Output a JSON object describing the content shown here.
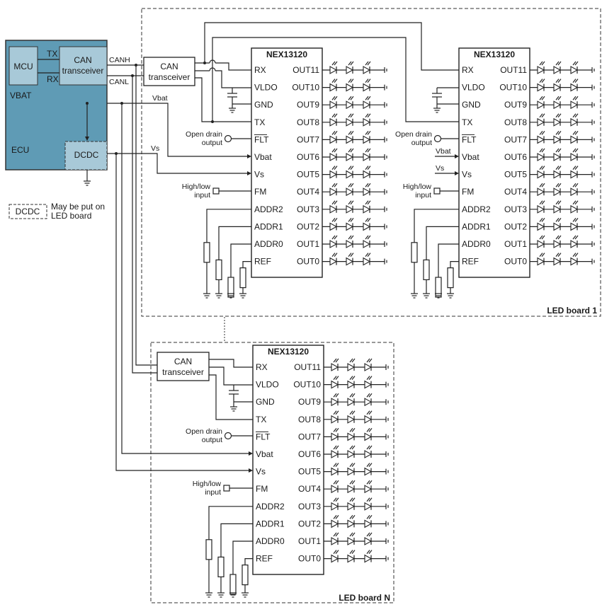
{
  "ecu": {
    "label": "ECU",
    "vbat_label": "VBAT",
    "mcu": "MCU",
    "can_transceiver": [
      "CAN",
      "transceiver"
    ],
    "tx": "TX",
    "rx": "RX",
    "dcdc": "DCDC",
    "canh": "CANH",
    "canl": "CANL"
  },
  "wires": {
    "vbat": "Vbat",
    "vs": "Vs"
  },
  "legend": {
    "dcdc": "DCDC",
    "note": [
      "May be put on",
      "LED board"
    ]
  },
  "transceiver": [
    "CAN",
    "transceiver"
  ],
  "chip": {
    "name": "NEX13120",
    "left_pins": [
      "RX",
      "VLDO",
      "GND",
      "TX",
      "FLT",
      "Vbat",
      "Vs",
      "FM",
      "ADDR2",
      "ADDR1",
      "ADDR0",
      "REF"
    ],
    "right_pins": [
      "OUT11",
      "OUT10",
      "OUT9",
      "OUT8",
      "OUT7",
      "OUT6",
      "OUT5",
      "OUT4",
      "OUT3",
      "OUT2",
      "OUT1",
      "OUT0"
    ]
  },
  "open_drain": [
    "Open drain",
    "output"
  ],
  "high_low": [
    "High/low",
    "input"
  ],
  "boards": [
    {
      "label": "LED board 1"
    },
    {
      "label": "LED board N"
    }
  ],
  "colors": {
    "ecu_fill": "#5f9bb5",
    "block_fill": "#a8c9d8",
    "line": "#222222"
  }
}
